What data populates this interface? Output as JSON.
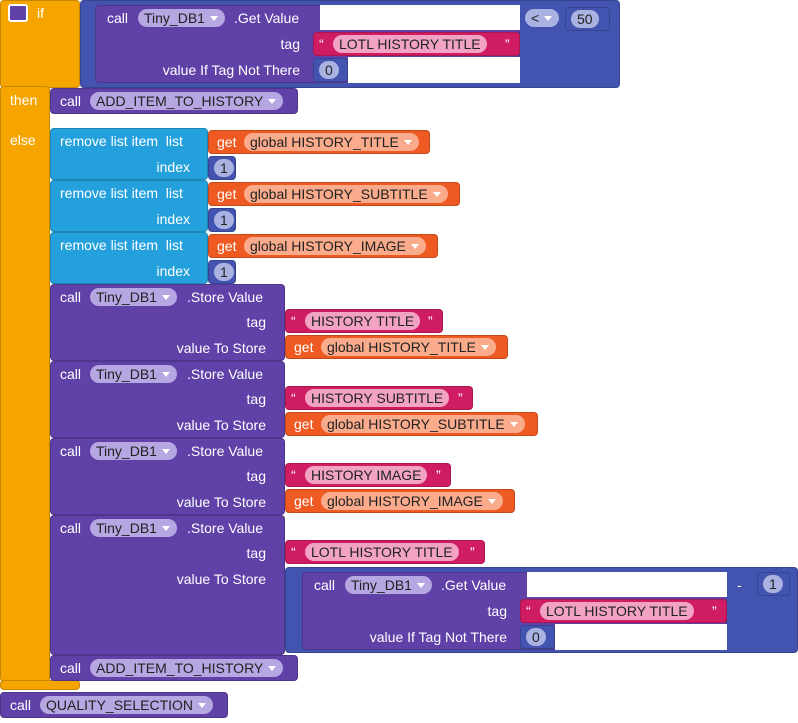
{
  "quote_open": "“",
  "quote_close": "”",
  "if_block": {
    "if": "if",
    "then": "then",
    "else": "else"
  },
  "condition": {
    "call": "call",
    "component": "Tiny_DB1",
    "method": ".Get Value",
    "tag_label": "tag",
    "tag": "LOTL HISTORY TITLE",
    "default_label": "value If Tag Not There",
    "default": 0,
    "operator": "<",
    "compare_to": 50
  },
  "then_call": {
    "call": "call",
    "procedure": "ADD_ITEM_TO_HISTORY"
  },
  "remove_items": [
    {
      "label": "remove list item  list",
      "get": "get",
      "variable": "global HISTORY_TITLE",
      "index_label": "index",
      "index": 1
    },
    {
      "label": "remove list item  list",
      "get": "get",
      "variable": "global HISTORY_SUBTITLE",
      "index_label": "index",
      "index": 1
    },
    {
      "label": "remove list item  list",
      "get": "get",
      "variable": "global HISTORY_IMAGE",
      "index_label": "index",
      "index": 1
    }
  ],
  "store_values": [
    {
      "call": "call",
      "component": "Tiny_DB1",
      "method": ".Store Value",
      "tag_label": "tag",
      "tag": "HISTORY TITLE",
      "value_label": "value To Store",
      "get": "get",
      "variable": "global HISTORY_TITLE"
    },
    {
      "call": "call",
      "component": "Tiny_DB1",
      "method": ".Store Value",
      "tag_label": "tag",
      "tag": "HISTORY SUBTITLE",
      "value_label": "value To Store",
      "get": "get",
      "variable": "global HISTORY_SUBTITLE"
    },
    {
      "call": "call",
      "component": "Tiny_DB1",
      "method": ".Store Value",
      "tag_label": "tag",
      "tag": "HISTORY IMAGE",
      "value_label": "value To Store",
      "get": "get",
      "variable": "global HISTORY_IMAGE"
    },
    {
      "call": "call",
      "component": "Tiny_DB1",
      "method": ".Store Value",
      "tag_label": "tag",
      "tag": "LOTL HISTORY TITLE",
      "value_label": "value To Store",
      "value": {
        "operator": "-",
        "subtrahend": 1,
        "call": "call",
        "component": "Tiny_DB1",
        "method": ".Get Value",
        "tag_label": "tag",
        "tag": "LOTL HISTORY TITLE",
        "default_label": "value If Tag Not There",
        "default": 0
      }
    }
  ],
  "else_call": {
    "call": "call",
    "procedure": "ADD_ITEM_TO_HISTORY"
  },
  "final_call": {
    "call": "call",
    "procedure": "QUALITY_SELECTION"
  }
}
